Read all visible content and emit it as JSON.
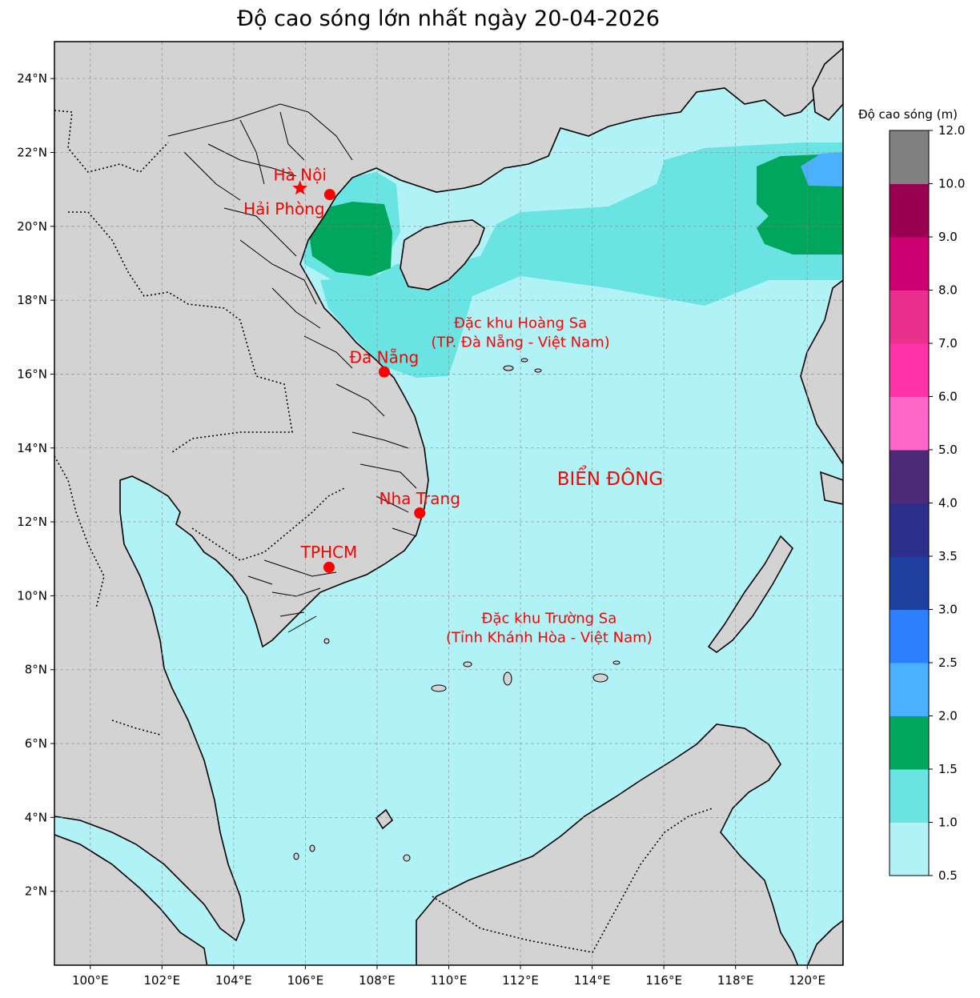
{
  "title": "Độ cao sóng lớn nhất ngày 20-04-2026",
  "map": {
    "lon_range": [
      99,
      121
    ],
    "lat_range": [
      0,
      25
    ],
    "lon_ticks": [
      {
        "lon": 100,
        "label": "100°E"
      },
      {
        "lon": 102,
        "label": "102°E"
      },
      {
        "lon": 104,
        "label": "104°E"
      },
      {
        "lon": 106,
        "label": "106°E"
      },
      {
        "lon": 108,
        "label": "108°E"
      },
      {
        "lon": 110,
        "label": "110°E"
      },
      {
        "lon": 112,
        "label": "112°E"
      },
      {
        "lon": 114,
        "label": "114°E"
      },
      {
        "lon": 116,
        "label": "116°E"
      },
      {
        "lon": 118,
        "label": "118°E"
      },
      {
        "lon": 120,
        "label": "120°E"
      }
    ],
    "lat_ticks": [
      {
        "lat": 2,
        "label": "2°N"
      },
      {
        "lat": 4,
        "label": "4°N"
      },
      {
        "lat": 6,
        "label": "6°N"
      },
      {
        "lat": 8,
        "label": "8°N"
      },
      {
        "lat": 10,
        "label": "10°N"
      },
      {
        "lat": 12,
        "label": "12°N"
      },
      {
        "lat": 14,
        "label": "14°N"
      },
      {
        "lat": 16,
        "label": "16°N"
      },
      {
        "lat": 18,
        "label": "18°N"
      },
      {
        "lat": 20,
        "label": "20°N"
      },
      {
        "lat": 22,
        "label": "22°N"
      },
      {
        "lat": 24,
        "label": "24°N"
      }
    ],
    "grid": true,
    "colors": {
      "land": "#d3d3d3",
      "sea": "#b0f2f6",
      "marker": "#ff0000",
      "label": "#ff0000"
    }
  },
  "cities": [
    {
      "name": "Hà Nội",
      "lon": 105.85,
      "lat": 21.03,
      "marker": "star"
    },
    {
      "name": "Hải Phòng",
      "lon": 106.68,
      "lat": 20.86,
      "marker": "dot"
    },
    {
      "name": "Đà Nẵng",
      "lon": 108.2,
      "lat": 16.06,
      "marker": "dot"
    },
    {
      "name": "Nha Trang",
      "lon": 109.19,
      "lat": 12.24,
      "marker": "dot"
    },
    {
      "name": "TPHCM",
      "lon": 106.66,
      "lat": 10.77,
      "marker": "dot"
    }
  ],
  "annotations": [
    {
      "id": "hoang-sa",
      "lines": [
        "Đặc khu Hoàng Sa",
        "(TP. Đà Nẵng - Việt Nam)"
      ],
      "lon": 112.0,
      "lat": 17.0
    },
    {
      "id": "bien-dong",
      "lines": [
        "BIỂN ĐÔNG"
      ],
      "lon": 114.5,
      "lat": 13.0
    },
    {
      "id": "truong-sa",
      "lines": [
        "Đặc khu Trường Sa",
        "(Tỉnh Khánh Hòa - Việt Nam)"
      ],
      "lon": 112.8,
      "lat": 9.0
    }
  ],
  "colorbar": {
    "label": "Độ cao sóng (m)",
    "bins": [
      {
        "from": 0.5,
        "to": 1.0,
        "color": "#b0f2f6"
      },
      {
        "from": 1.0,
        "to": 1.5,
        "color": "#6ae4e3"
      },
      {
        "from": 1.5,
        "to": 2.0,
        "color": "#00a65b"
      },
      {
        "from": 2.0,
        "to": 2.5,
        "color": "#4bb0fe"
      },
      {
        "from": 2.5,
        "to": 3.0,
        "color": "#2e7ffe"
      },
      {
        "from": 3.0,
        "to": 3.5,
        "color": "#1f3f9e"
      },
      {
        "from": 3.5,
        "to": 4.0,
        "color": "#2c2e8c"
      },
      {
        "from": 4.0,
        "to": 5.0,
        "color": "#4b2a78"
      },
      {
        "from": 5.0,
        "to": 6.0,
        "color": "#ff66c8"
      },
      {
        "from": 6.0,
        "to": 7.0,
        "color": "#ff33a8"
      },
      {
        "from": 7.0,
        "to": 8.0,
        "color": "#e8308c"
      },
      {
        "from": 8.0,
        "to": 9.0,
        "color": "#cc0070"
      },
      {
        "from": 9.0,
        "to": 10.0,
        "color": "#990050"
      },
      {
        "from": 10.0,
        "to": 12.0,
        "color": "#808080"
      }
    ],
    "tick_labels": [
      "0.5",
      "1.0",
      "1.5",
      "2.0",
      "2.5",
      "3.0",
      "3.5",
      "4.0",
      "5.0",
      "6.0",
      "7.0",
      "8.0",
      "9.0",
      "10.0",
      "12.0"
    ]
  }
}
